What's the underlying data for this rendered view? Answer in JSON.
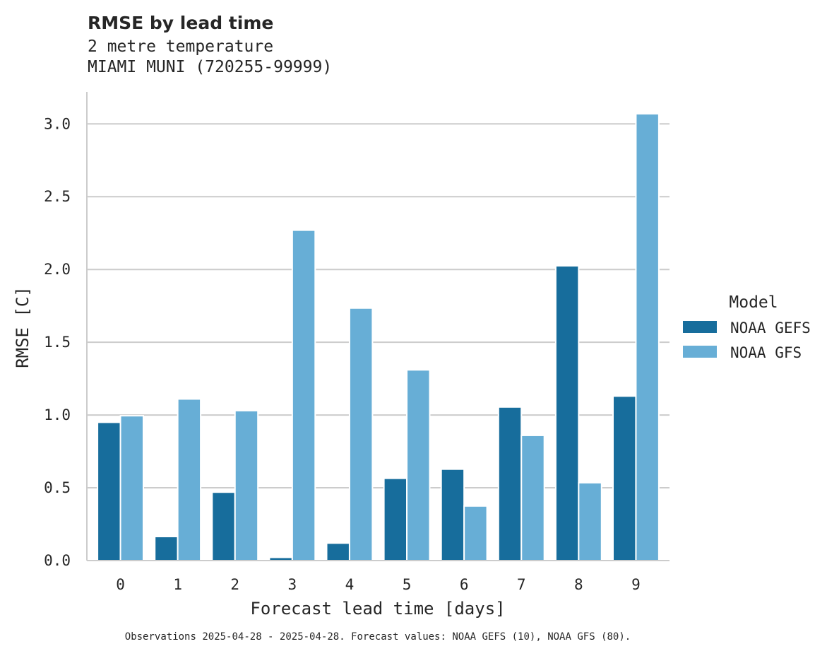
{
  "chart_data": {
    "type": "bar",
    "title": "RMSE by lead time",
    "subtitle_lines": [
      "2 metre temperature",
      "MIAMI MUNI (720255-99999)"
    ],
    "xlabel": "Forecast lead time [days]",
    "ylabel": "RMSE [C]",
    "categories": [
      "0",
      "1",
      "2",
      "3",
      "4",
      "5",
      "6",
      "7",
      "8",
      "9"
    ],
    "ylim": [
      0,
      3.22
    ],
    "yticks": [
      0.0,
      0.5,
      1.0,
      1.5,
      2.0,
      2.5,
      3.0
    ],
    "ytick_labels": [
      "0.0",
      "0.5",
      "1.0",
      "1.5",
      "2.0",
      "2.5",
      "3.0"
    ],
    "grid": "horizontal",
    "legend": {
      "title": "Model",
      "placement": "right"
    },
    "series": [
      {
        "name": "NOAA GEFS",
        "color": "#176d9c",
        "values": [
          0.95,
          0.165,
          0.47,
          0.022,
          0.12,
          0.565,
          0.628,
          1.055,
          2.025,
          1.13
        ]
      },
      {
        "name": "NOAA GFS",
        "color": "#67aed6",
        "values": [
          0.995,
          1.11,
          1.03,
          2.27,
          1.735,
          1.31,
          0.375,
          0.86,
          0.535,
          3.07
        ]
      }
    ],
    "footnote": "Observations 2025-04-28 - 2025-04-28. Forecast values: NOAA GEFS (10), NOAA GFS (80)."
  }
}
